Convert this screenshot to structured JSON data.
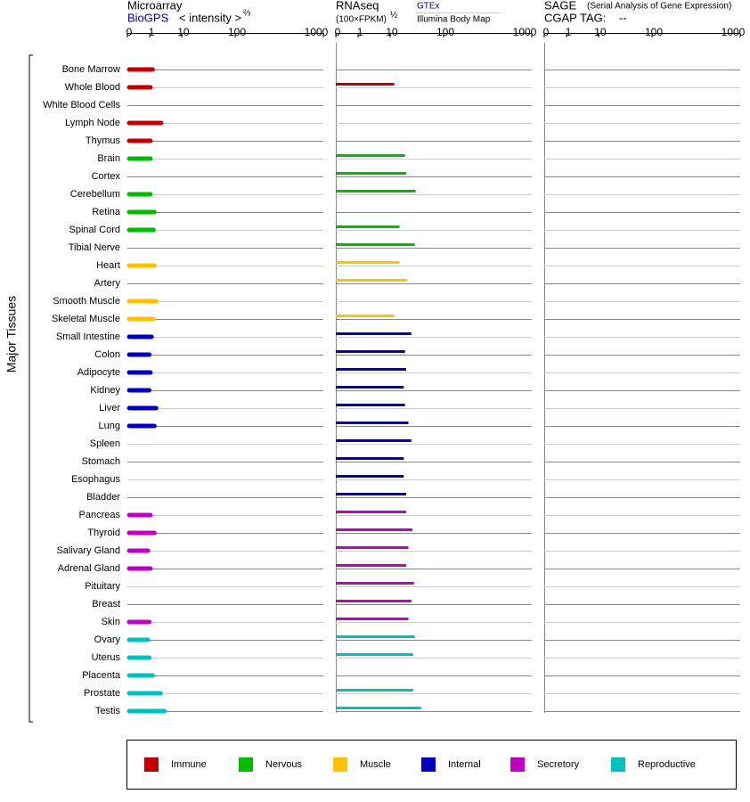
{
  "row_label": "Major Tissues",
  "categories": [
    "Bone Marrow",
    "Whole Blood",
    "White Blood Cells",
    "Lymph Node",
    "Thymus",
    "Brain",
    "Cortex",
    "Cerebellum",
    "Retina",
    "Spinal Cord",
    "Tibial Nerve",
    "Heart",
    "Artery",
    "Smooth Muscle",
    "Skeletal Muscle",
    "Small Intestine",
    "Colon",
    "Adipocyte",
    "Kidney",
    "Liver",
    "Lung",
    "Spleen",
    "Stomach",
    "Esophagus",
    "Bladder",
    "Pancreas",
    "Thyroid",
    "Salivary Gland",
    "Adrenal Gland",
    "Pituitary",
    "Breast",
    "Skin",
    "Ovary",
    "Uterus",
    "Placenta",
    "Prostate",
    "Testis"
  ],
  "category_group": [
    0,
    0,
    0,
    0,
    0,
    1,
    1,
    1,
    1,
    1,
    1,
    2,
    2,
    2,
    2,
    3,
    3,
    3,
    3,
    3,
    3,
    3,
    3,
    3,
    3,
    4,
    4,
    4,
    4,
    4,
    4,
    4,
    5,
    5,
    5,
    5,
    5
  ],
  "groups": [
    {
      "name": "Immune",
      "color": "#c00000"
    },
    {
      "name": "Nervous",
      "color": "#00bb00"
    },
    {
      "name": "Muscle",
      "color": "#ffc000"
    },
    {
      "name": "Internal",
      "color": "#0000c0"
    },
    {
      "name": "Secretory",
      "color": "#c000c0"
    },
    {
      "name": "Reproductive",
      "color": "#00c0c0"
    }
  ],
  "chart_data": [
    {
      "type": "bar",
      "title": "Microarray",
      "source": "BioGPS",
      "axis_label": "< intensity >",
      "axis_label_exponent": "⅔",
      "xlim": [
        0,
        1000
      ],
      "xticks": [
        0,
        1,
        10,
        100,
        1000
      ],
      "values": [
        1.4,
        1.2,
        null,
        2.6,
        1.2,
        1.2,
        null,
        1.2,
        1.6,
        1.5,
        null,
        1.6,
        null,
        1.8,
        1.5,
        1.3,
        1.1,
        1.2,
        1.1,
        1.8,
        1.6,
        null,
        null,
        null,
        null,
        1.2,
        1.6,
        1.0,
        1.2,
        null,
        null,
        1.1,
        1.0,
        1.1,
        1.4,
        2.5,
        3.3
      ]
    },
    {
      "type": "bar",
      "title": "RNAseq",
      "axis_label": "(100×FPKM)",
      "axis_label_exponent": "½",
      "source": "GTEx",
      "source2": "Illumina Body Map",
      "xlim": [
        0,
        1000
      ],
      "xticks": [
        0,
        1,
        10,
        100,
        1000
      ],
      "values": [
        null,
        12,
        null,
        null,
        null,
        19,
        20,
        30,
        null,
        15,
        29,
        15,
        21,
        null,
        12,
        25,
        19,
        20,
        18,
        19,
        22,
        25,
        18,
        18,
        20,
        20,
        26,
        22,
        20,
        28,
        25,
        22,
        29,
        27,
        null,
        27,
        38
      ]
    },
    {
      "type": "bar",
      "title": "SAGE",
      "subtitle": "(Serial Analysis of Gene Expression)",
      "axis_label": "CGAP TAG:",
      "tag": "--",
      "xlim": [
        0,
        1000
      ],
      "xticks": [
        0,
        1,
        10,
        100,
        1000
      ],
      "values": [
        null,
        null,
        null,
        null,
        null,
        null,
        null,
        null,
        null,
        null,
        null,
        null,
        null,
        null,
        null,
        null,
        null,
        null,
        null,
        null,
        null,
        null,
        null,
        null,
        null,
        null,
        null,
        null,
        null,
        null,
        null,
        null,
        null,
        null,
        null,
        null,
        null
      ]
    }
  ]
}
